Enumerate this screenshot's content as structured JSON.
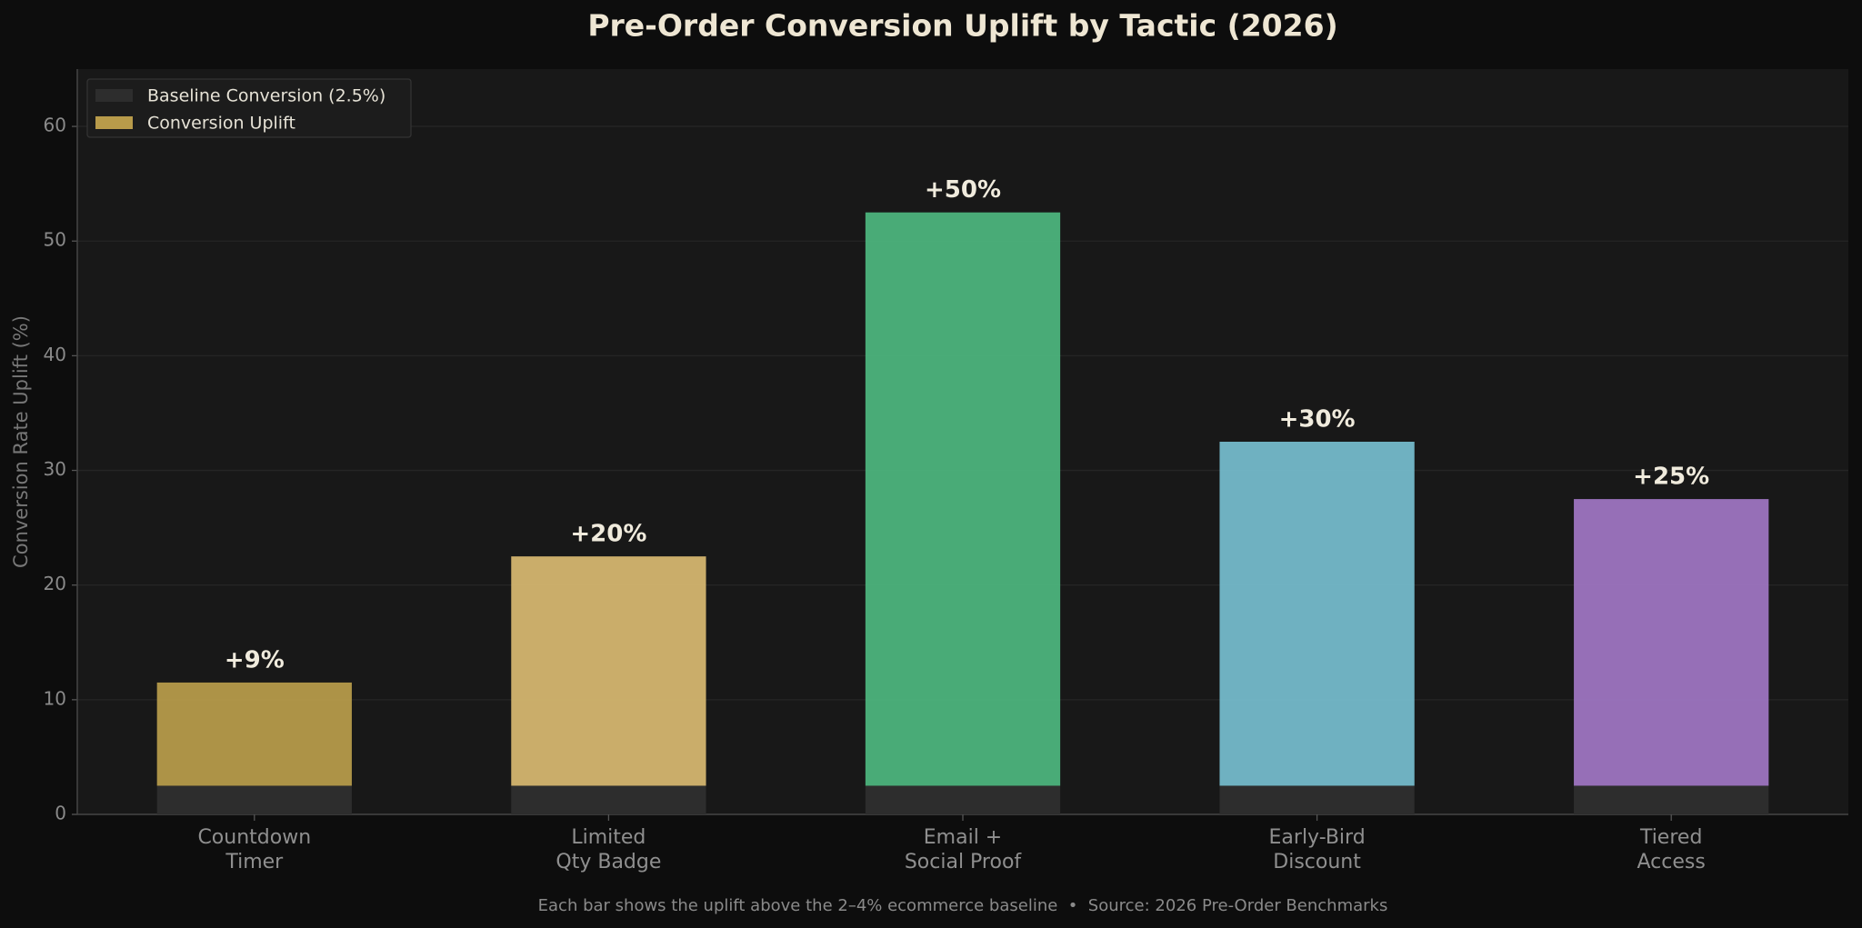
{
  "chart_data": {
    "type": "stacked_bar",
    "title": "Pre-Order Conversion Uplift by Tactic (2026)",
    "y_label": "Conversion Rate Uplift (%)",
    "footer": "Each bar shows the uplift above the 2–4% ecommerce baseline  •  Source: 2026 Pre-Order Benchmarks",
    "categories": [
      "Countdown\nTimer",
      "Limited\nQty Badge",
      "Email +\nSocial Proof",
      "Early-Bird\nDiscount",
      "Tiered\nAccess"
    ],
    "series": [
      {
        "name": "Baseline Conversion (2.5%)",
        "color": "#2d2d2d",
        "values": [
          2.5,
          2.5,
          2.5,
          2.5,
          2.5
        ]
      },
      {
        "name": "Conversion Uplift",
        "color": "#b89b4a",
        "colors": [
          "#b59a4a",
          "#d4b56f",
          "#4cb37c",
          "#74b9ca",
          "#9d74c0"
        ],
        "values": [
          9,
          20,
          50,
          30,
          25
        ],
        "value_labels": [
          "+9%",
          "+20%",
          "+50%",
          "+30%",
          "+25%"
        ]
      }
    ],
    "ylim": [
      0,
      65
    ],
    "yticks": [
      0,
      10,
      20,
      30,
      40,
      50,
      60
    ],
    "grid": true,
    "legend": "upper left"
  }
}
